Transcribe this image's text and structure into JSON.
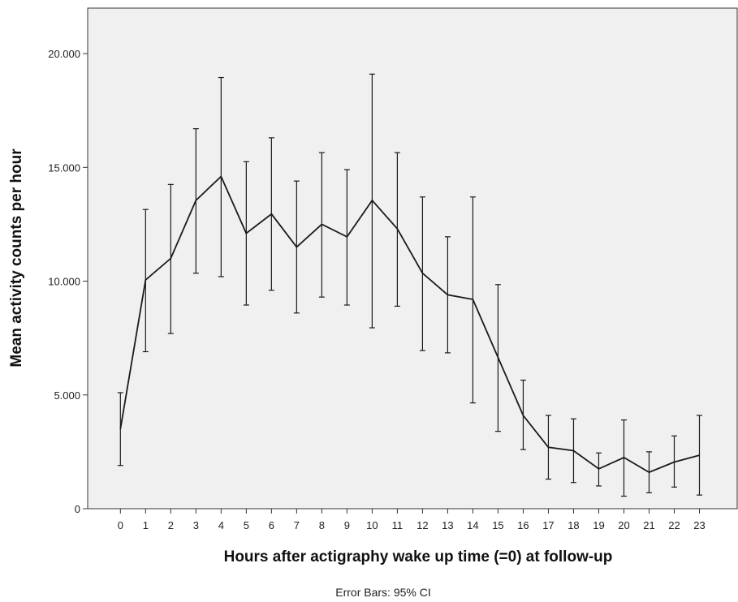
{
  "chart_data": {
    "type": "line",
    "xlabel": "Hours after actigraphy wake up time (=0) at follow-up",
    "ylabel": "Mean activity counts per hour",
    "footnote": "Error Bars: 95% CI",
    "ylim": [
      0,
      22000
    ],
    "xlim": [
      -1.3,
      24.5
    ],
    "y_ticks": [
      0,
      5000,
      10000,
      15000,
      20000
    ],
    "y_tick_labels": [
      "0",
      "5.000",
      "10.000",
      "15.000",
      "20.000"
    ],
    "grid": false,
    "x": [
      0,
      1,
      2,
      3,
      4,
      5,
      6,
      7,
      8,
      9,
      10,
      11,
      12,
      13,
      14,
      15,
      16,
      17,
      18,
      19,
      20,
      21,
      22,
      23
    ],
    "x_tick_labels": [
      "0",
      "1",
      "2",
      "3",
      "4",
      "5",
      "6",
      "7",
      "8",
      "9",
      "10",
      "11",
      "12",
      "13",
      "14",
      "15",
      "16",
      "17",
      "18",
      "19",
      "20",
      "21",
      "22",
      "23"
    ],
    "series": [
      {
        "values": [
          3500,
          10050,
          11000,
          13550,
          14600,
          12100,
          12950,
          11500,
          12500,
          11950,
          13550,
          12300,
          10350,
          9400,
          9200,
          6650,
          4100,
          2700,
          2550,
          1750,
          2250,
          1600,
          2050,
          2350
        ],
        "ci_lower": [
          1900,
          6900,
          7700,
          10350,
          10200,
          8950,
          9600,
          8600,
          9300,
          8950,
          7950,
          8900,
          6950,
          6850,
          4650,
          3400,
          2600,
          1300,
          1150,
          1000,
          550,
          700,
          950,
          600
        ],
        "ci_upper": [
          5100,
          13150,
          14250,
          16700,
          18950,
          15250,
          16300,
          14400,
          15650,
          14900,
          19100,
          15650,
          13700,
          11950,
          13700,
          9850,
          5650,
          4100,
          3950,
          2450,
          3900,
          2500,
          3200,
          4100
        ]
      }
    ],
    "colors": {
      "plot_background": "#f0f0f0",
      "line": "#1a1a1a",
      "axis": "#333333"
    }
  }
}
